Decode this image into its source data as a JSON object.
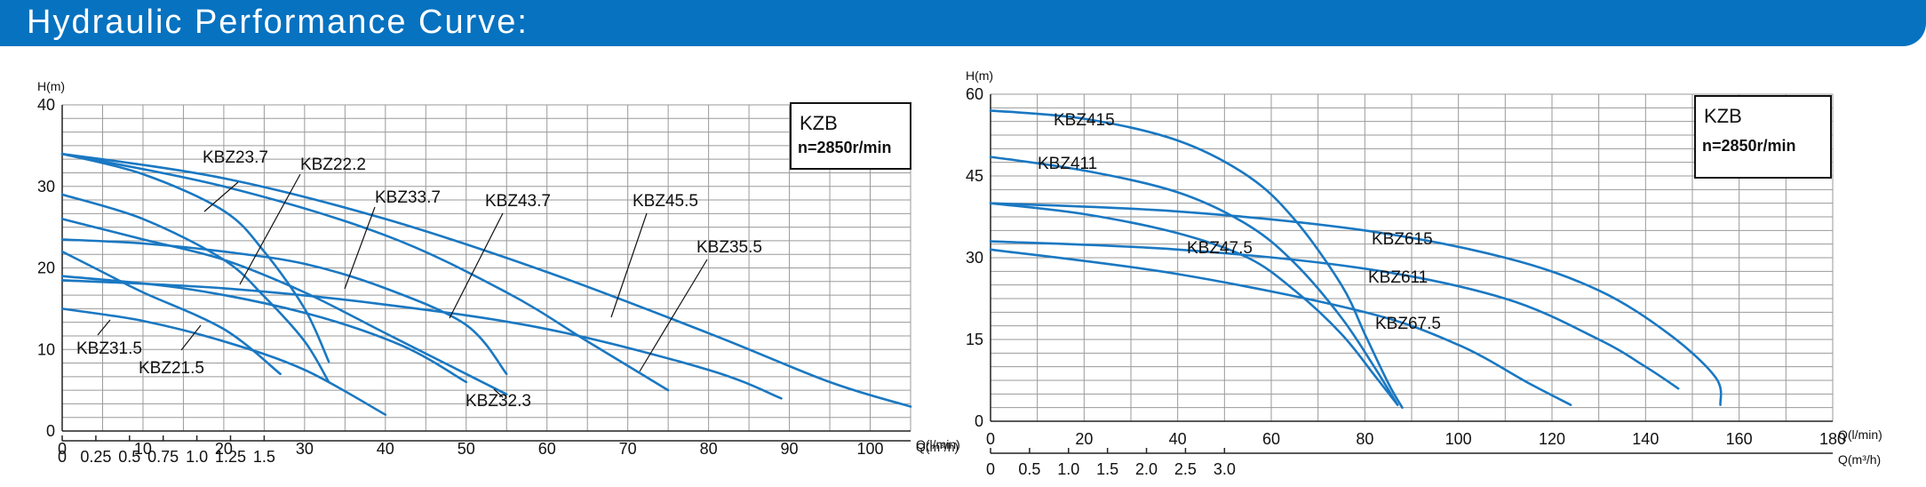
{
  "header": {
    "title": "Hydraulic Performance Curve:"
  },
  "chart_data": [
    {
      "type": "line",
      "xlabel": "Q(l/min)",
      "x2label": "Q(m³/h)",
      "ylabel": "H(m)",
      "xlim": [
        0,
        105
      ],
      "ylim": [
        0,
        40
      ],
      "x_ticks": [
        0,
        10,
        20,
        30,
        40,
        50,
        60,
        70,
        80,
        90,
        100
      ],
      "y_ticks": [
        0,
        10,
        20,
        30,
        40
      ],
      "x2_ticks": [
        "0",
        "0.25",
        "0.5",
        "0.75",
        "1.0",
        "1.25",
        "1.5"
      ],
      "x2_values": [
        0,
        0.25,
        0.5,
        0.75,
        1.0,
        1.25,
        1.5
      ],
      "legend_title": "KZB",
      "legend_sub": "n=2850r/min",
      "series": [
        {
          "name": "KBZ23.7",
          "points": [
            [
              0,
              34
            ],
            [
              10,
              31.5
            ],
            [
              20,
              27
            ],
            [
              25,
              22
            ],
            [
              30,
              15
            ],
            [
              33,
              8.5
            ]
          ]
        },
        {
          "name": "KBZ22.2",
          "points": [
            [
              0,
              29
            ],
            [
              10,
              26
            ],
            [
              20,
              21
            ],
            [
              25,
              16.5
            ],
            [
              30,
              11
            ],
            [
              33,
              6
            ]
          ]
        },
        {
          "name": "KBZ33.7",
          "points": [
            [
              0,
              26
            ],
            [
              10,
              23.5
            ],
            [
              20,
              21
            ],
            [
              30,
              17
            ],
            [
              40,
              12
            ],
            [
              50,
              7
            ],
            [
              55,
              4.5
            ]
          ]
        },
        {
          "name": "KBZ43.7",
          "points": [
            [
              0,
              34
            ],
            [
              20,
              30
            ],
            [
              40,
              24
            ],
            [
              55,
              17
            ],
            [
              65,
              11
            ],
            [
              75,
              5
            ]
          ]
        },
        {
          "name": "KBZ45.5",
          "points": [
            [
              0,
              34
            ],
            [
              20,
              31
            ],
            [
              40,
              26
            ],
            [
              60,
              19.5
            ],
            [
              80,
              12
            ],
            [
              95,
              6
            ],
            [
              105,
              3
            ]
          ]
        },
        {
          "name": "KBZ35.5",
          "points": [
            [
              0,
              18.5
            ],
            [
              20,
              17.5
            ],
            [
              40,
              15.5
            ],
            [
              60,
              12.5
            ],
            [
              80,
              7.5
            ],
            [
              89,
              4
            ]
          ]
        },
        {
          "name": "KBZ31.5",
          "points": [
            [
              0,
              23.5
            ],
            [
              10,
              23
            ],
            [
              20,
              22
            ],
            [
              30,
              20.5
            ],
            [
              40,
              17.5
            ],
            [
              50,
              13
            ],
            [
              55,
              7
            ]
          ]
        },
        {
          "name": "KBZ21.5",
          "points": [
            [
              0,
              22
            ],
            [
              5,
              19.5
            ],
            [
              10,
              17
            ],
            [
              20,
              12.5
            ],
            [
              27,
              7
            ]
          ]
        },
        {
          "name": "KBZ32.3",
          "points": [
            [
              0,
              15
            ],
            [
              10,
              13.5
            ],
            [
              20,
              11
            ],
            [
              30,
              7.5
            ],
            [
              40,
              2
            ]
          ]
        },
        {
          "name": "",
          "points": [
            [
              0,
              19
            ],
            [
              15,
              17.5
            ],
            [
              30,
              14.5
            ],
            [
              42,
              10.5
            ],
            [
              50,
              6
            ]
          ]
        }
      ],
      "labels": [
        "KBZ23.7",
        "KBZ22.2",
        "KBZ33.7",
        "KBZ43.7",
        "KBZ45.5",
        "KBZ35.5",
        "KBZ31.5",
        "KBZ21.5",
        "KBZ32.3"
      ]
    },
    {
      "type": "line",
      "xlabel": "Q(l/min)",
      "x2label": "Q(m³/h)",
      "ylabel": "H(m)",
      "xlim": [
        0,
        180
      ],
      "ylim": [
        0,
        60
      ],
      "x_ticks": [
        0,
        20,
        40,
        60,
        80,
        100,
        120,
        140,
        160,
        180
      ],
      "y_ticks": [
        0,
        15,
        30,
        45,
        60
      ],
      "x2_ticks": [
        "0",
        "0.5",
        "1.0",
        "1.5",
        "2.0",
        "2.5",
        "3.0"
      ],
      "x2_values": [
        0,
        0.5,
        1.0,
        1.5,
        2.0,
        2.5,
        3.0
      ],
      "legend_title": "KZB",
      "legend_sub": "n=2850r/min",
      "series": [
        {
          "name": "KBZ415",
          "points": [
            [
              0,
              57
            ],
            [
              20,
              55.5
            ],
            [
              40,
              51.5
            ],
            [
              55,
              45
            ],
            [
              65,
              37
            ],
            [
              75,
              25
            ],
            [
              80,
              16
            ],
            [
              85,
              7
            ],
            [
              88,
              2.5
            ]
          ]
        },
        {
          "name": "KBZ411",
          "points": [
            [
              0,
              48.5
            ],
            [
              20,
              46
            ],
            [
              40,
              42
            ],
            [
              55,
              36
            ],
            [
              65,
              29
            ],
            [
              75,
              19
            ],
            [
              82,
              10
            ],
            [
              87,
              3
            ]
          ]
        },
        {
          "name": "KBZ47.5",
          "points": [
            [
              0,
              40
            ],
            [
              20,
              38
            ],
            [
              40,
              34.5
            ],
            [
              55,
              30
            ],
            [
              65,
              24
            ],
            [
              75,
              16
            ],
            [
              82,
              8.5
            ],
            [
              87,
              3
            ]
          ]
        },
        {
          "name": "KBZ615",
          "points": [
            [
              0,
              40
            ],
            [
              40,
              38.5
            ],
            [
              80,
              35
            ],
            [
              110,
              30
            ],
            [
              130,
              24
            ],
            [
              145,
              16
            ],
            [
              155,
              8
            ],
            [
              156,
              3
            ]
          ]
        },
        {
          "name": "KBZ611",
          "points": [
            [
              0,
              33
            ],
            [
              40,
              31.5
            ],
            [
              80,
              28
            ],
            [
              110,
              22.5
            ],
            [
              130,
              15
            ],
            [
              140,
              10
            ],
            [
              147,
              6
            ]
          ]
        },
        {
          "name": "KBZ67.5",
          "points": [
            [
              0,
              31.5
            ],
            [
              40,
              27
            ],
            [
              80,
              20
            ],
            [
              100,
              14
            ],
            [
              115,
              7
            ],
            [
              124,
              3
            ]
          ]
        }
      ],
      "labels": [
        "KBZ415",
        "KBZ411",
        "KBZ47.5",
        "KBZ615",
        "KBZ611",
        "KBZ67.5"
      ]
    }
  ]
}
